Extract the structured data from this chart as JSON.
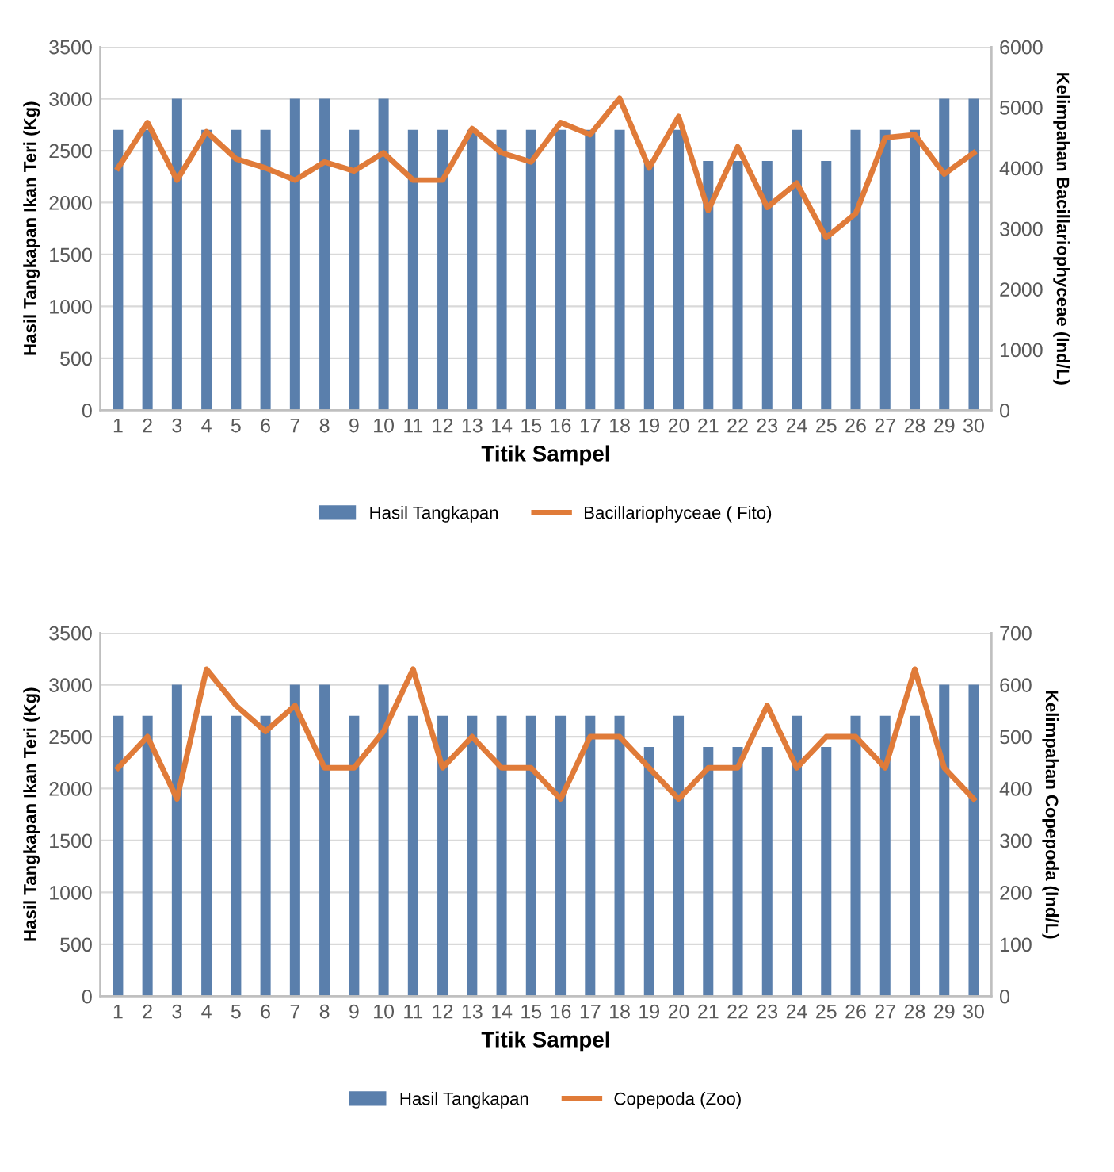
{
  "chart_data": [
    {
      "type": "bar",
      "categories": [
        "1",
        "2",
        "3",
        "4",
        "5",
        "6",
        "7",
        "8",
        "9",
        "10",
        "11",
        "12",
        "13",
        "14",
        "15",
        "16",
        "17",
        "18",
        "19",
        "20",
        "21",
        "22",
        "23",
        "24",
        "25",
        "26",
        "27",
        "28",
        "29",
        "30"
      ],
      "xlabel": "Titik Sampel",
      "ylabel": "Hasil Tangkapan Ikan Teri (Kg)",
      "y2label": "Kelimpahan Bacillariophyceae (Ind/L)",
      "series": [
        {
          "name": "Hasil Tangkapan",
          "color": "#5a7fac",
          "values": [
            2700,
            2700,
            3000,
            2700,
            2700,
            2700,
            3000,
            3000,
            2700,
            3000,
            2700,
            2700,
            2700,
            2700,
            2700,
            2700,
            2700,
            2700,
            2400,
            2700,
            2400,
            2400,
            2400,
            2700,
            2400,
            2700,
            2700,
            2700,
            3000,
            3000
          ]
        },
        {
          "name": "Bacillariophyceae ( Fito)",
          "type": "line",
          "axis": "y2",
          "color": "#e07b39",
          "values": [
            4000,
            4750,
            3800,
            4600,
            4150,
            4000,
            3800,
            4100,
            3950,
            4250,
            3800,
            3800,
            4650,
            4250,
            4100,
            4750,
            4550,
            5150,
            4000,
            4850,
            3300,
            4350,
            3350,
            3750,
            2850,
            3250,
            4500,
            4550,
            3900,
            4250
          ]
        }
      ],
      "ylim": [
        0,
        3500
      ],
      "yticks": [
        0,
        500,
        1000,
        1500,
        2000,
        2500,
        3000,
        3500
      ],
      "y2lim": [
        0,
        6000
      ],
      "y2ticks": [
        0,
        1000,
        2000,
        3000,
        4000,
        5000,
        6000
      ],
      "grid": "y",
      "legend": "bottom"
    },
    {
      "type": "bar",
      "categories": [
        "1",
        "2",
        "3",
        "4",
        "5",
        "6",
        "7",
        "8",
        "9",
        "10",
        "11",
        "12",
        "13",
        "14",
        "15",
        "16",
        "17",
        "18",
        "19",
        "20",
        "21",
        "22",
        "23",
        "24",
        "25",
        "26",
        "27",
        "28",
        "29",
        "30"
      ],
      "xlabel": "Titik Sampel",
      "ylabel": "Hasil Tangkapan Ikan Teri (Kg)",
      "y2label": "Kelimpahan Copepoda (Ind/L)",
      "series": [
        {
          "name": "Hasil Tangkapan",
          "color": "#5a7fac",
          "values": [
            2700,
            2700,
            3000,
            2700,
            2700,
            2700,
            3000,
            3000,
            2700,
            3000,
            2700,
            2700,
            2700,
            2700,
            2700,
            2700,
            2700,
            2700,
            2400,
            2700,
            2400,
            2400,
            2400,
            2700,
            2400,
            2700,
            2700,
            2700,
            3000,
            3000
          ]
        },
        {
          "name": "Copepoda (Zoo)",
          "type": "line",
          "axis": "y2",
          "color": "#e07b39",
          "values": [
            440,
            500,
            380,
            630,
            560,
            510,
            560,
            440,
            440,
            510,
            630,
            440,
            500,
            440,
            440,
            380,
            500,
            500,
            440,
            380,
            440,
            440,
            560,
            440,
            500,
            500,
            440,
            630,
            440,
            380
          ]
        }
      ],
      "ylim": [
        0,
        3500
      ],
      "yticks": [
        0,
        500,
        1000,
        1500,
        2000,
        2500,
        3000,
        3500
      ],
      "y2lim": [
        0,
        700
      ],
      "y2ticks": [
        0,
        100,
        200,
        300,
        400,
        500,
        600,
        700
      ],
      "grid": "y",
      "legend": "bottom"
    }
  ]
}
